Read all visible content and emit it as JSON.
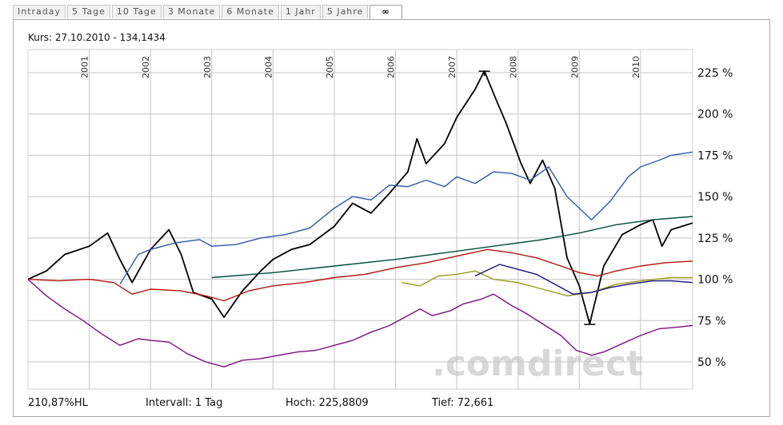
{
  "tabs": [
    "Intraday",
    "5 Tage",
    "10 Tage",
    "3 Monate",
    "6 Monate",
    "1 Jahr",
    "5 Jahre",
    "∞"
  ],
  "active_tab": 7,
  "header": {
    "kurs": "Kurs: 27.10.2010 - 134,1434"
  },
  "footer": {
    "hl": "210,87%HL",
    "intervall": "Intervall: 1 Tag",
    "hoch": "Hoch: 225,8809",
    "tief": "Tief: 72,661"
  },
  "watermark": ".comdirect",
  "chart_data": {
    "type": "line",
    "title": "",
    "x_unit": "year",
    "x_range": [
      2000.0,
      2010.85
    ],
    "ylim": [
      38,
      235
    ],
    "y_ticks": [
      50,
      75,
      100,
      125,
      150,
      175,
      200,
      225
    ],
    "y_tick_labels": [
      "50 %",
      "75 %",
      "100 %",
      "125 %",
      "150 %",
      "175 %",
      "200 %",
      "225 %"
    ],
    "year_labels": [
      "2001",
      "2002",
      "2003",
      "2004",
      "2005",
      "2006",
      "2007",
      "2008",
      "2009",
      "2010"
    ],
    "grid": true,
    "series": [
      {
        "color": "#000000",
        "points": [
          [
            2000.0,
            100
          ],
          [
            2000.3,
            105
          ],
          [
            2000.6,
            115
          ],
          [
            2001.0,
            120
          ],
          [
            2001.3,
            128
          ],
          [
            2001.5,
            112
          ],
          [
            2001.7,
            98
          ],
          [
            2002.0,
            118
          ],
          [
            2002.3,
            130
          ],
          [
            2002.5,
            115
          ],
          [
            2002.7,
            92
          ],
          [
            2003.0,
            88
          ],
          [
            2003.2,
            77
          ],
          [
            2003.5,
            93
          ],
          [
            2003.8,
            105
          ],
          [
            2004.0,
            112
          ],
          [
            2004.3,
            118
          ],
          [
            2004.6,
            121
          ],
          [
            2005.0,
            132
          ],
          [
            2005.3,
            146
          ],
          [
            2005.6,
            140
          ],
          [
            2005.9,
            152
          ],
          [
            2006.2,
            165
          ],
          [
            2006.35,
            185
          ],
          [
            2006.5,
            170
          ],
          [
            2006.8,
            182
          ],
          [
            2007.0,
            198
          ],
          [
            2007.3,
            215
          ],
          [
            2007.45,
            226
          ],
          [
            2007.65,
            208
          ],
          [
            2007.8,
            195
          ],
          [
            2007.95,
            180
          ],
          [
            2008.05,
            170
          ],
          [
            2008.2,
            158
          ],
          [
            2008.4,
            172
          ],
          [
            2008.6,
            155
          ],
          [
            2008.8,
            113
          ],
          [
            2009.0,
            96
          ],
          [
            2009.17,
            73
          ],
          [
            2009.4,
            108
          ],
          [
            2009.7,
            127
          ],
          [
            2010.0,
            133
          ],
          [
            2010.2,
            136
          ],
          [
            2010.35,
            120
          ],
          [
            2010.5,
            130
          ],
          [
            2010.85,
            134
          ]
        ]
      },
      {
        "color": "#2d5aa8",
        "points": [
          [
            2001.5,
            97
          ],
          [
            2001.8,
            115
          ],
          [
            2002.0,
            118
          ],
          [
            2002.4,
            122
          ],
          [
            2002.8,
            124
          ],
          [
            2003.0,
            120
          ],
          [
            2003.4,
            121
          ],
          [
            2003.8,
            125
          ],
          [
            2004.2,
            127
          ],
          [
            2004.6,
            131
          ],
          [
            2005.0,
            143
          ],
          [
            2005.3,
            150
          ],
          [
            2005.6,
            148
          ],
          [
            2005.9,
            157
          ],
          [
            2006.2,
            156
          ],
          [
            2006.5,
            160
          ],
          [
            2006.8,
            156
          ],
          [
            2007.0,
            162
          ],
          [
            2007.3,
            158
          ],
          [
            2007.6,
            165
          ],
          [
            2007.9,
            164
          ],
          [
            2008.2,
            160
          ],
          [
            2008.5,
            168
          ],
          [
            2008.8,
            150
          ],
          [
            2009.0,
            143
          ],
          [
            2009.2,
            136
          ],
          [
            2009.5,
            147
          ],
          [
            2009.8,
            162
          ],
          [
            2010.0,
            168
          ],
          [
            2010.3,
            172
          ],
          [
            2010.5,
            175
          ],
          [
            2010.85,
            177
          ]
        ]
      },
      {
        "color": "#004c3a",
        "points": [
          [
            2003.0,
            101
          ],
          [
            2004.0,
            104
          ],
          [
            2005.0,
            108
          ],
          [
            2006.0,
            112
          ],
          [
            2007.0,
            117
          ],
          [
            2007.8,
            121
          ],
          [
            2008.4,
            124
          ],
          [
            2009.0,
            128
          ],
          [
            2009.6,
            133
          ],
          [
            2010.2,
            136
          ],
          [
            2010.85,
            138
          ]
        ]
      },
      {
        "color": "#b3150a",
        "points": [
          [
            2000.0,
            100
          ],
          [
            2000.5,
            99
          ],
          [
            2001.0,
            100
          ],
          [
            2001.4,
            98
          ],
          [
            2001.7,
            91
          ],
          [
            2002.0,
            94
          ],
          [
            2002.5,
            93
          ],
          [
            2002.9,
            90
          ],
          [
            2003.2,
            87
          ],
          [
            2003.6,
            93
          ],
          [
            2004.0,
            96
          ],
          [
            2004.5,
            98
          ],
          [
            2005.0,
            101
          ],
          [
            2005.5,
            103
          ],
          [
            2006.0,
            107
          ],
          [
            2006.5,
            110
          ],
          [
            2007.0,
            114
          ],
          [
            2007.5,
            118
          ],
          [
            2007.9,
            116
          ],
          [
            2008.3,
            113
          ],
          [
            2008.7,
            108
          ],
          [
            2009.0,
            104
          ],
          [
            2009.3,
            102
          ],
          [
            2009.6,
            105
          ],
          [
            2010.0,
            108
          ],
          [
            2010.4,
            110
          ],
          [
            2010.85,
            111
          ]
        ]
      },
      {
        "color": "#9b9a1a",
        "points": [
          [
            2006.1,
            98
          ],
          [
            2006.4,
            96
          ],
          [
            2006.7,
            102
          ],
          [
            2007.0,
            103
          ],
          [
            2007.3,
            105
          ],
          [
            2007.6,
            100
          ],
          [
            2008.0,
            98
          ],
          [
            2008.4,
            94
          ],
          [
            2008.8,
            90
          ],
          [
            2009.2,
            92
          ],
          [
            2009.6,
            97
          ],
          [
            2010.0,
            99
          ],
          [
            2010.5,
            101
          ],
          [
            2010.85,
            101
          ]
        ]
      },
      {
        "color": "#14127a",
        "points": [
          [
            2007.3,
            102
          ],
          [
            2007.7,
            109
          ],
          [
            2008.0,
            106
          ],
          [
            2008.3,
            103
          ],
          [
            2008.6,
            97
          ],
          [
            2008.9,
            91
          ],
          [
            2009.2,
            92
          ],
          [
            2009.5,
            95
          ],
          [
            2009.8,
            97
          ],
          [
            2010.2,
            99
          ],
          [
            2010.5,
            99
          ],
          [
            2010.85,
            98
          ]
        ]
      },
      {
        "color": "#7d0f82",
        "points": [
          [
            2000.0,
            100
          ],
          [
            2000.3,
            90
          ],
          [
            2000.6,
            82
          ],
          [
            2000.9,
            75
          ],
          [
            2001.2,
            67
          ],
          [
            2001.5,
            60
          ],
          [
            2001.8,
            64
          ],
          [
            2002.0,
            63
          ],
          [
            2002.3,
            62
          ],
          [
            2002.6,
            55
          ],
          [
            2002.9,
            50
          ],
          [
            2003.2,
            47
          ],
          [
            2003.5,
            51
          ],
          [
            2003.8,
            52
          ],
          [
            2004.1,
            54
          ],
          [
            2004.4,
            56
          ],
          [
            2004.7,
            57
          ],
          [
            2005.0,
            60
          ],
          [
            2005.3,
            63
          ],
          [
            2005.6,
            68
          ],
          [
            2005.9,
            72
          ],
          [
            2006.2,
            78
          ],
          [
            2006.4,
            82
          ],
          [
            2006.6,
            78
          ],
          [
            2006.9,
            81
          ],
          [
            2007.1,
            85
          ],
          [
            2007.4,
            88
          ],
          [
            2007.6,
            91
          ],
          [
            2007.9,
            84
          ],
          [
            2008.1,
            80
          ],
          [
            2008.4,
            73
          ],
          [
            2008.7,
            66
          ],
          [
            2008.95,
            57
          ],
          [
            2009.2,
            54
          ],
          [
            2009.4,
            56
          ],
          [
            2009.7,
            61
          ],
          [
            2010.0,
            66
          ],
          [
            2010.3,
            70
          ],
          [
            2010.6,
            71
          ],
          [
            2010.85,
            72
          ]
        ]
      }
    ],
    "markers": [
      {
        "type": "high",
        "x": 2007.45,
        "y": 225.8809
      },
      {
        "type": "low",
        "x": 2009.17,
        "y": 72.661
      }
    ]
  }
}
